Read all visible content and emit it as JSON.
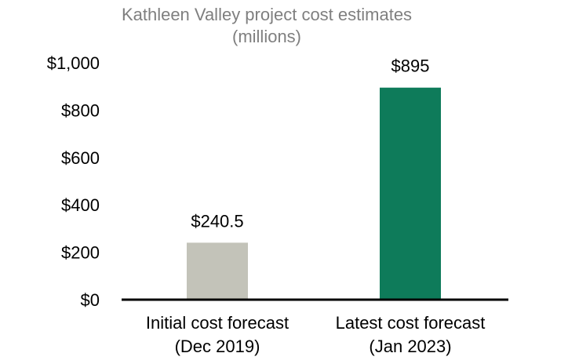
{
  "chart_data": {
    "type": "bar",
    "title": "Kathleen Valley project cost estimates",
    "subtitle": "(millions)",
    "categories": [
      [
        "Initial cost forecast",
        "(Dec 2019)"
      ],
      [
        "Latest cost forecast",
        "(Jan 2023)"
      ]
    ],
    "values": [
      240.5,
      895
    ],
    "data_labels": [
      "$240.5",
      "$895"
    ],
    "bar_colors": [
      "#c3c3b9",
      "#0e7b5a"
    ],
    "ylim": [
      0,
      1000
    ],
    "yticks": [
      0,
      200,
      400,
      600,
      800,
      1000
    ],
    "ytick_labels": [
      "$0",
      "$200",
      "$400",
      "$600",
      "$800",
      "$1,000"
    ],
    "grid": false,
    "legend": "none"
  },
  "colors": {
    "title": "#7f7f7f",
    "axis": "#000000"
  }
}
